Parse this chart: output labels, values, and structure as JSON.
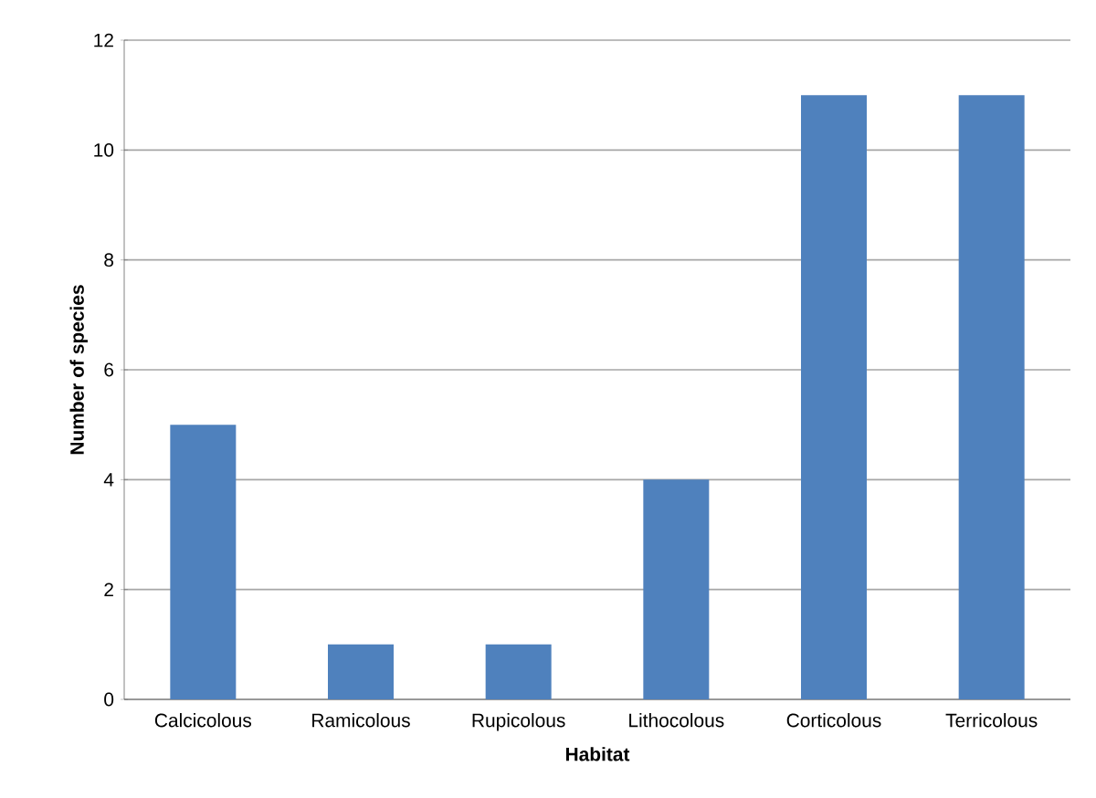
{
  "chart_data": {
    "type": "bar",
    "xlabel": "Habitat",
    "ylabel": "Number of species",
    "categories": [
      "Calcicolous",
      "Ramicolous",
      "Rupicolous",
      "Lithocolous",
      "Corticolous",
      "Terricolous"
    ],
    "values": [
      5,
      1,
      1,
      4,
      11,
      11
    ],
    "color": "#4f81bd",
    "ylim": [
      0,
      12
    ],
    "yticks": [
      0,
      2,
      4,
      6,
      8,
      10,
      12
    ],
    "grid": "y"
  }
}
